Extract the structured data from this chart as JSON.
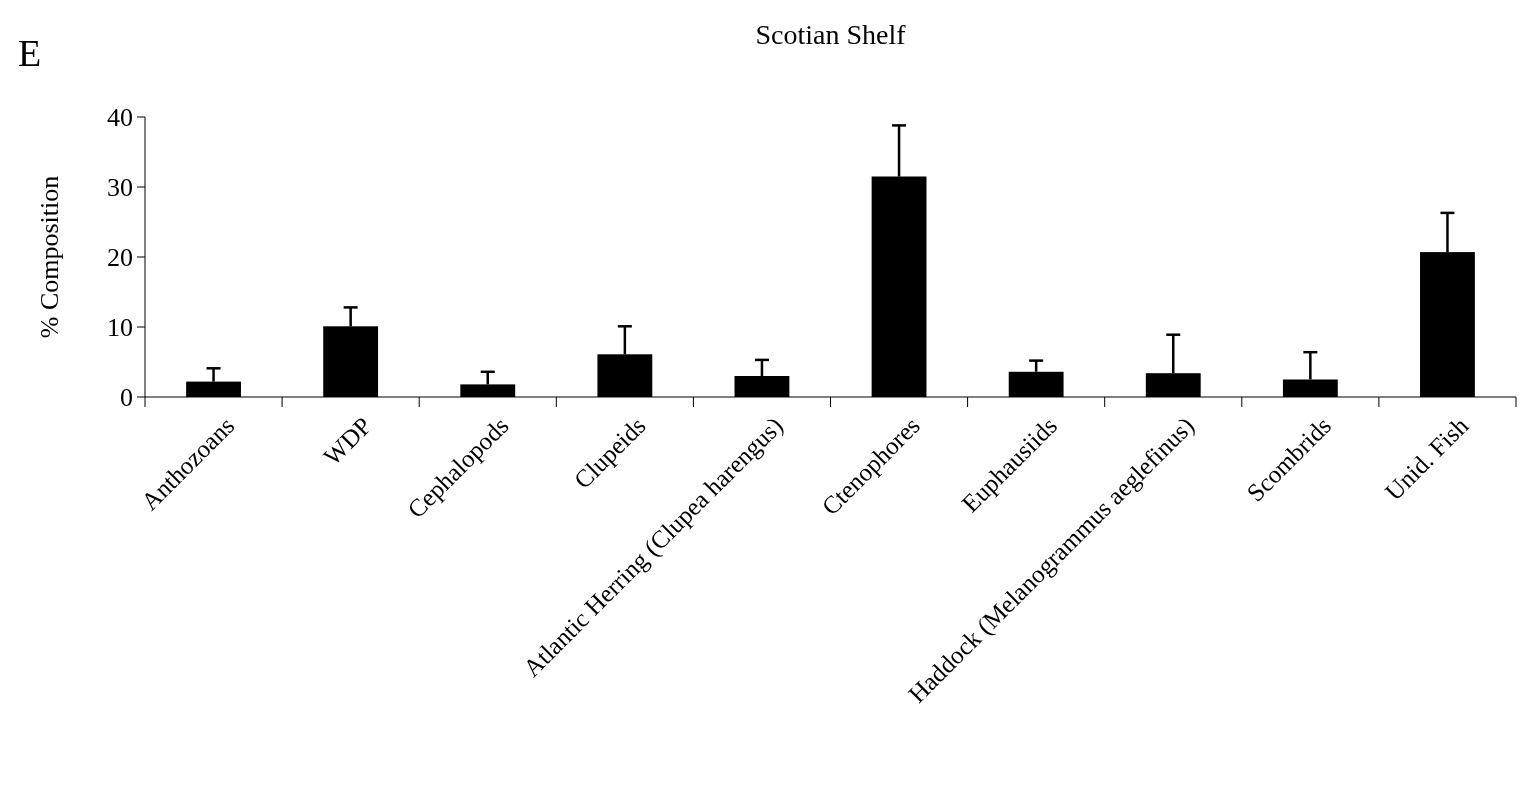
{
  "chart_data": {
    "type": "bar",
    "title": "Scotian Shelf",
    "ylabel": "% Composition",
    "annotations": [
      "E"
    ],
    "categories": [
      "Anthozoans",
      "WDP",
      "Cephalopods",
      "Clupeids",
      "Atlantic Herring (Clupea harengus)",
      "Ctenophores",
      "Euphausiids",
      "Haddock (Melanogrammus aeglefinus)",
      "Scombrids",
      "Unid. Fish"
    ],
    "values": [
      2.2,
      10.1,
      1.8,
      6.1,
      3.0,
      31.5,
      3.6,
      3.4,
      2.5,
      20.7
    ],
    "errors": [
      [
        2.2,
        4.1
      ],
      [
        10.1,
        12.8
      ],
      [
        1.8,
        3.6
      ],
      [
        6.1,
        10.1
      ],
      [
        3.0,
        5.3
      ],
      [
        31.5,
        38.8
      ],
      [
        3.6,
        5.2
      ],
      [
        3.4,
        8.9
      ],
      [
        2.5,
        6.4
      ],
      [
        20.7,
        26.3
      ]
    ],
    "color": "#000000",
    "ylim": [
      0,
      40
    ],
    "yticks": [
      0,
      10,
      20,
      30,
      40
    ],
    "grid": false
  }
}
